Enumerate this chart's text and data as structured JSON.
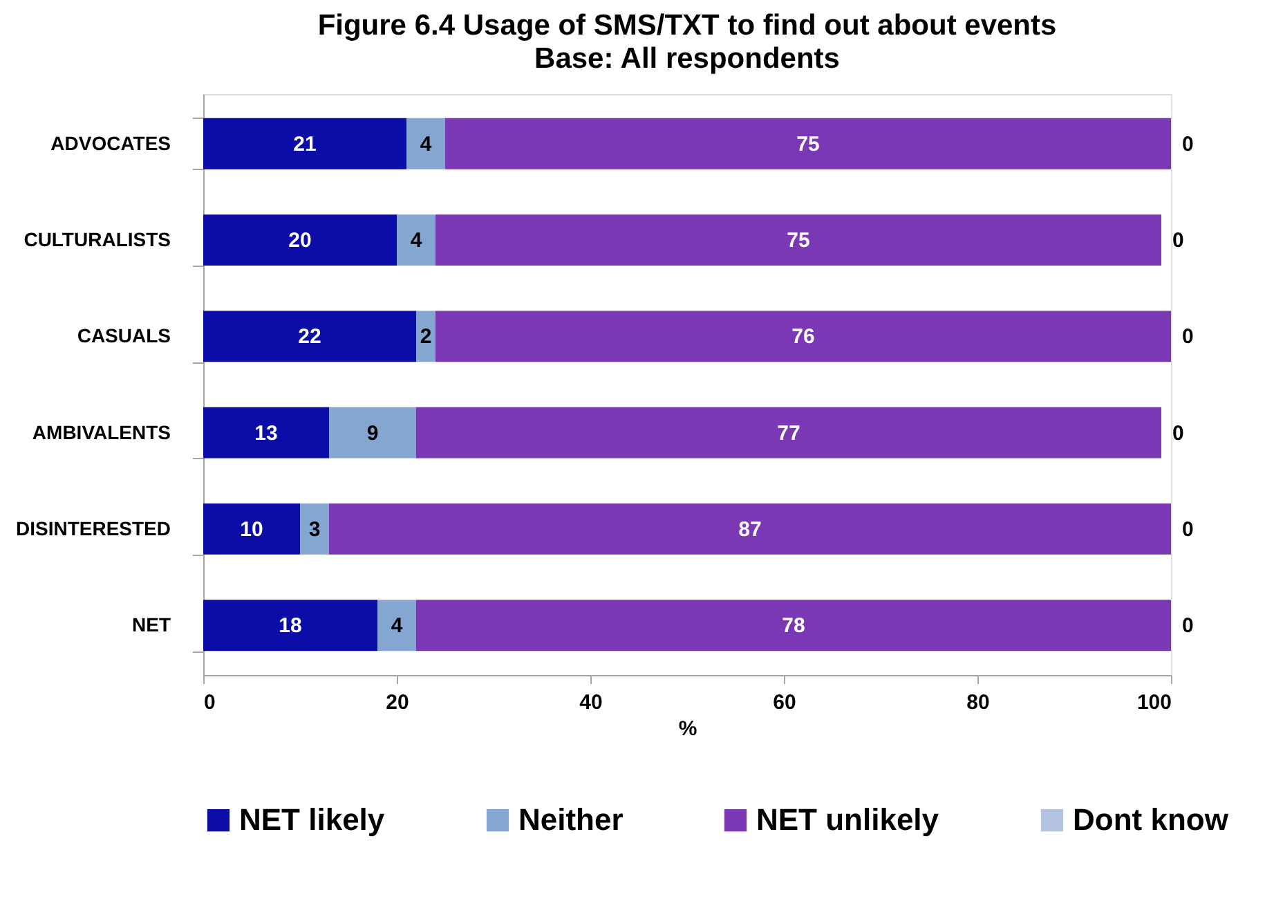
{
  "chart_data": {
    "type": "bar",
    "orientation": "horizontal",
    "stacked": true,
    "title": "Figure 6.4  Usage of SMS/TXT to find out about events",
    "subtitle": "Base: All respondents",
    "xlabel": "%",
    "categories": [
      "ADVOCATES",
      "CULTURALISTS",
      "CASUALS",
      "AMBIVALENTS",
      "DISINTERESTED",
      "NET"
    ],
    "series": [
      {
        "name": "NET likely",
        "color": "#0c0ca6",
        "values": [
          21,
          20,
          22,
          13,
          10,
          18
        ]
      },
      {
        "name": "Neither",
        "color": "#86a6d2",
        "values": [
          4,
          4,
          2,
          9,
          3,
          4
        ]
      },
      {
        "name": "NET unlikely",
        "color": "#7a38b4",
        "values": [
          75,
          75,
          76,
          77,
          87,
          78
        ]
      },
      {
        "name": "Dont know",
        "color": "#b3c3e0",
        "values": [
          0,
          0,
          0,
          0,
          0,
          0
        ]
      }
    ],
    "xlim": [
      0,
      100
    ],
    "xticks": [
      0,
      20,
      40,
      60,
      80,
      100
    ],
    "data_labels": true,
    "grid": false,
    "legend": "bottom"
  }
}
